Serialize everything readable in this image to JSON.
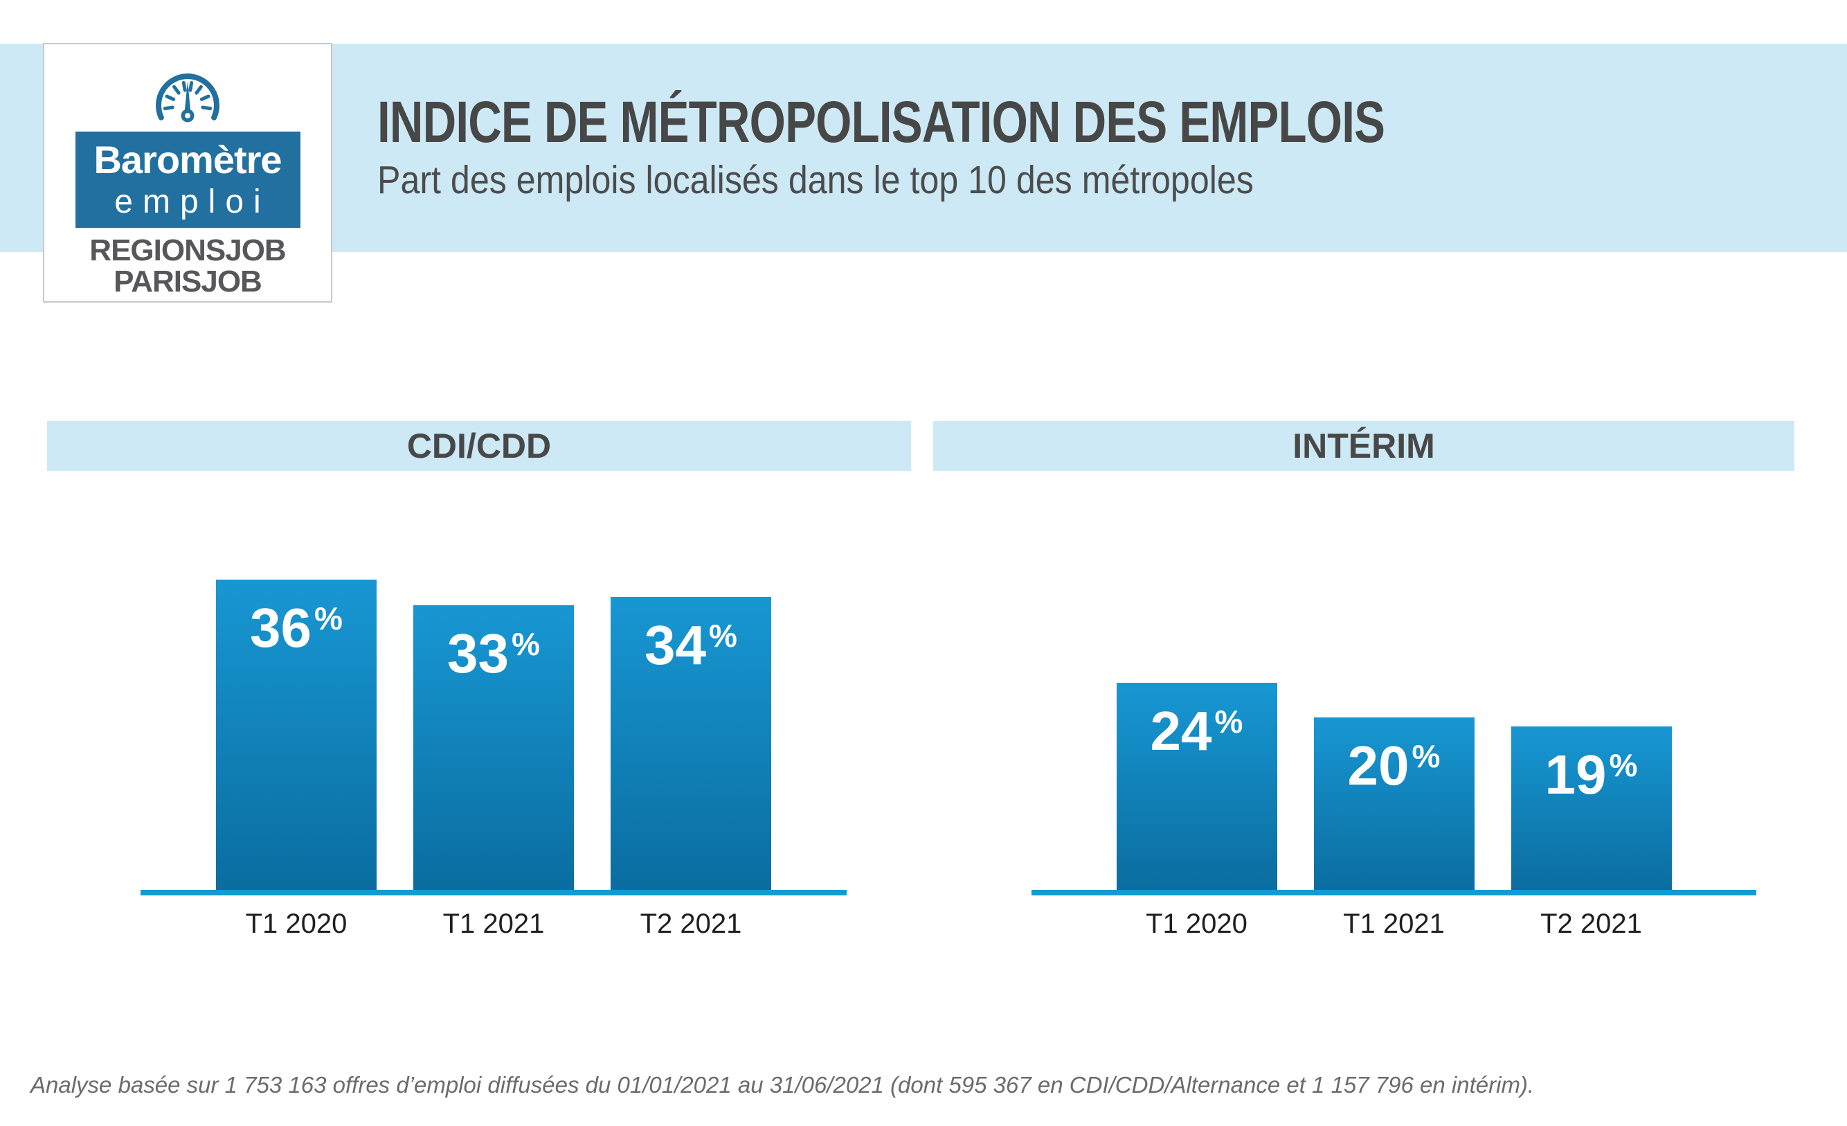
{
  "logo": {
    "gauge_icon": "gauge-icon",
    "title_line1": "Baromètre",
    "title_line2": "emploi",
    "brand_line1": "REGIONSJOB",
    "brand_line2": "PARISJOB"
  },
  "header": {
    "title": "INDICE DE MÉTROPOLISATION DES EMPLOIS",
    "subtitle": "Part des emplois localisés dans le top 10 des métropoles"
  },
  "colors": {
    "band_blue": "#cde9f5",
    "bar_gradient_top": "#1897d3",
    "bar_gradient_bottom": "#0a6da0",
    "axis_blue": "#129bd2",
    "logo_blue": "#21709f",
    "title_gray": "#474747",
    "brand_gray": "#57575a"
  },
  "chart_data": [
    {
      "type": "bar",
      "title": "CDI/CDD",
      "categories": [
        "T1 2020",
        "T1 2021",
        "T2 2021"
      ],
      "values": [
        36,
        33,
        34
      ],
      "value_labels": [
        "36",
        "33",
        "34"
      ],
      "unit": "%",
      "xlabel": "",
      "ylabel": "",
      "ylim": [
        0,
        40
      ],
      "grid": false,
      "legend": false
    },
    {
      "type": "bar",
      "title": "INTÉRIM",
      "categories": [
        "T1 2020",
        "T1 2021",
        "T2 2021"
      ],
      "values": [
        24,
        20,
        19
      ],
      "value_labels": [
        "24",
        "20",
        "19"
      ],
      "unit": "%",
      "xlabel": "",
      "ylabel": "",
      "ylim": [
        0,
        40
      ],
      "grid": false,
      "legend": false
    }
  ],
  "footer": {
    "note": "Analyse basée sur 1 753 163 offres d’emploi diffusées du 01/01/2021 au 31/06/2021 (dont 595 367 en CDI/CDD/Alternance et 1 157 796 en intérim)."
  }
}
